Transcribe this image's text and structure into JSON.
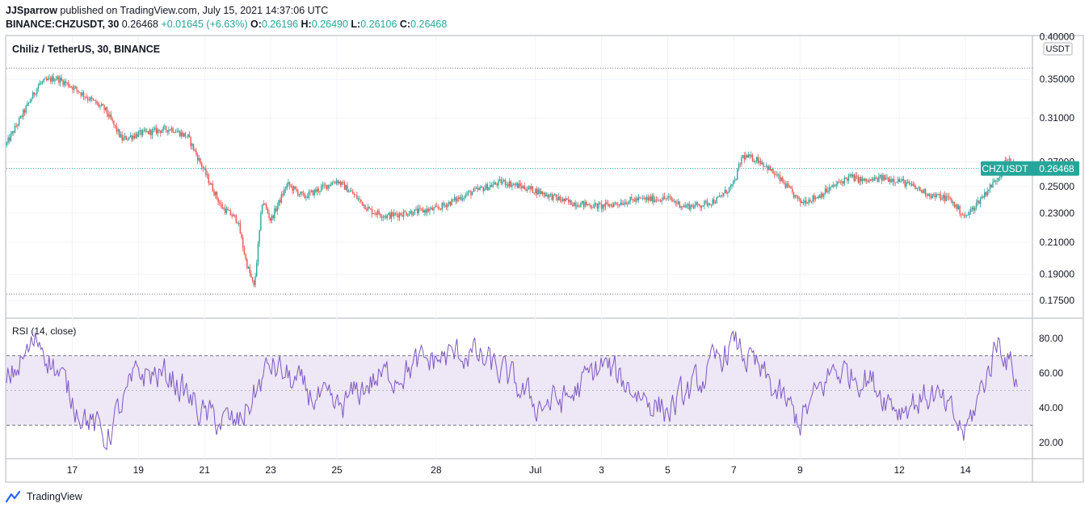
{
  "header": {
    "publisher": "JJSparrow",
    "published_text": "published on TradingView.com, July 15, 2021 14:37:06 UTC",
    "symbol": "BINANCE:CHZUSDT, 30",
    "last": "0.26468",
    "change": "+0.01645 (+6.63%)",
    "o_label": "O:",
    "o_value": "0.26196",
    "h_label": "H:",
    "h_value": "0.26490",
    "l_label": "L:",
    "l_value": "0.26106",
    "c_label": "C:",
    "c_value": "0.26468"
  },
  "colors": {
    "up": "#26a69a",
    "down": "#ef5350",
    "wick": "#4a4a4a",
    "rsi_line": "#7e57c2",
    "rsi_band": "#ede7f6",
    "grid": "#f0f3fa",
    "axis_line": "#787b86",
    "badge": "#26a69a"
  },
  "footer": {
    "brand": "TradingView",
    "brand_icon": "tradingview-logo-icon"
  },
  "chart_data": [
    {
      "type": "candlestick",
      "title": "Chiliz / TetherUS, 30, BINANCE",
      "axis_unit": "USDT",
      "y_scale": "log",
      "ylim": [
        0.17,
        0.41
      ],
      "y_ticks": [
        "0.40000",
        "0.35000",
        "0.31000",
        "0.27000",
        "0.25000",
        "0.23000",
        "0.21000",
        "0.19000",
        "0.17500"
      ],
      "x_ticks": [
        "17",
        "19",
        "21",
        "23",
        "25",
        "28",
        "Jul",
        "3",
        "5",
        "7",
        "9",
        "12",
        "14"
      ],
      "high_line": 0.3625,
      "low_line": 0.1785,
      "last_price_label": "CHZUSDT",
      "last_price": "0.26468",
      "approx_close_path": [
        {
          "date": "2021-06-15",
          "close": 0.285
        },
        {
          "date": "2021-06-16",
          "close": 0.345
        },
        {
          "date": "2021-06-16 12:00",
          "close": 0.352
        },
        {
          "date": "2021-06-17",
          "close": 0.342
        },
        {
          "date": "2021-06-18",
          "close": 0.318
        },
        {
          "date": "2021-06-18 12:00",
          "close": 0.29
        },
        {
          "date": "2021-06-19",
          "close": 0.295
        },
        {
          "date": "2021-06-20",
          "close": 0.3
        },
        {
          "date": "2021-06-20 12:00",
          "close": 0.292
        },
        {
          "date": "2021-06-21",
          "close": 0.262
        },
        {
          "date": "2021-06-21 12:00",
          "close": 0.235
        },
        {
          "date": "2021-06-22",
          "close": 0.225
        },
        {
          "date": "2021-06-22 06:00",
          "close": 0.198
        },
        {
          "date": "2021-06-22 12:00",
          "close": 0.182
        },
        {
          "date": "2021-06-22 18:00",
          "close": 0.24
        },
        {
          "date": "2021-06-23",
          "close": 0.225
        },
        {
          "date": "2021-06-23 12:00",
          "close": 0.252
        },
        {
          "date": "2021-06-24",
          "close": 0.242
        },
        {
          "date": "2021-06-25",
          "close": 0.255
        },
        {
          "date": "2021-06-25 12:00",
          "close": 0.244
        },
        {
          "date": "2021-06-26",
          "close": 0.232
        },
        {
          "date": "2021-06-26 12:00",
          "close": 0.228
        },
        {
          "date": "2021-06-27",
          "close": 0.23
        },
        {
          "date": "2021-06-28",
          "close": 0.233
        },
        {
          "date": "2021-06-29",
          "close": 0.245
        },
        {
          "date": "2021-06-30",
          "close": 0.254
        },
        {
          "date": "2021-07-01",
          "close": 0.247
        },
        {
          "date": "2021-07-02",
          "close": 0.238
        },
        {
          "date": "2021-07-03",
          "close": 0.235
        },
        {
          "date": "2021-07-04",
          "close": 0.24
        },
        {
          "date": "2021-07-05",
          "close": 0.241
        },
        {
          "date": "2021-07-05 12:00",
          "close": 0.235
        },
        {
          "date": "2021-07-06",
          "close": 0.236
        },
        {
          "date": "2021-07-06 12:00",
          "close": 0.24
        },
        {
          "date": "2021-07-07",
          "close": 0.252
        },
        {
          "date": "2021-07-07 06:00",
          "close": 0.275
        },
        {
          "date": "2021-07-07 18:00",
          "close": 0.272
        },
        {
          "date": "2021-07-08",
          "close": 0.266
        },
        {
          "date": "2021-07-08 12:00",
          "close": 0.253
        },
        {
          "date": "2021-07-09",
          "close": 0.238
        },
        {
          "date": "2021-07-09 12:00",
          "close": 0.242
        },
        {
          "date": "2021-07-10",
          "close": 0.25
        },
        {
          "date": "2021-07-10 12:00",
          "close": 0.258
        },
        {
          "date": "2021-07-11",
          "close": 0.254
        },
        {
          "date": "2021-07-11 12:00",
          "close": 0.257
        },
        {
          "date": "2021-07-12",
          "close": 0.255
        },
        {
          "date": "2021-07-12 12:00",
          "close": 0.249
        },
        {
          "date": "2021-07-13",
          "close": 0.243
        },
        {
          "date": "2021-07-13 12:00",
          "close": 0.241
        },
        {
          "date": "2021-07-14",
          "close": 0.227
        },
        {
          "date": "2021-07-14 12:00",
          "close": 0.242
        },
        {
          "date": "2021-07-15",
          "close": 0.258
        },
        {
          "date": "2021-07-15 06:00",
          "close": 0.272
        },
        {
          "date": "2021-07-15 14:30",
          "close": 0.2647
        }
      ]
    },
    {
      "type": "line",
      "title": "RSI (14, close)",
      "ylim": [
        13,
        88
      ],
      "y_ticks": [
        "80.00",
        "60.00",
        "40.00",
        "20.00"
      ],
      "band": [
        30,
        70
      ],
      "midline": 50,
      "approx_values": [
        {
          "date": "2021-06-15",
          "rsi": 55
        },
        {
          "date": "2021-06-16",
          "rsi": 80
        },
        {
          "date": "2021-06-17",
          "rsi": 45
        },
        {
          "date": "2021-06-18",
          "rsi": 22
        },
        {
          "date": "2021-06-19",
          "rsi": 60
        },
        {
          "date": "2021-06-20",
          "rsi": 58
        },
        {
          "date": "2021-06-21",
          "rsi": 35
        },
        {
          "date": "2021-06-22",
          "rsi": 30
        },
        {
          "date": "2021-06-23",
          "rsi": 65
        },
        {
          "date": "2021-06-24",
          "rsi": 50
        },
        {
          "date": "2021-06-25",
          "rsi": 38
        },
        {
          "date": "2021-06-26",
          "rsi": 55
        },
        {
          "date": "2021-06-28",
          "rsi": 68
        },
        {
          "date": "2021-06-29",
          "rsi": 72
        },
        {
          "date": "2021-06-30",
          "rsi": 60
        },
        {
          "date": "2021-07-01",
          "rsi": 42
        },
        {
          "date": "2021-07-02",
          "rsi": 45
        },
        {
          "date": "2021-07-03",
          "rsi": 65
        },
        {
          "date": "2021-07-04",
          "rsi": 50
        },
        {
          "date": "2021-07-05",
          "rsi": 38
        },
        {
          "date": "2021-07-06",
          "rsi": 55
        },
        {
          "date": "2021-07-07",
          "rsi": 78
        },
        {
          "date": "2021-07-08",
          "rsi": 55
        },
        {
          "date": "2021-07-09",
          "rsi": 32
        },
        {
          "date": "2021-07-10",
          "rsi": 62
        },
        {
          "date": "2021-07-11",
          "rsi": 58
        },
        {
          "date": "2021-07-12",
          "rsi": 40
        },
        {
          "date": "2021-07-13",
          "rsi": 48
        },
        {
          "date": "2021-07-14",
          "rsi": 25
        },
        {
          "date": "2021-07-14 18:00",
          "rsi": 65
        },
        {
          "date": "2021-07-15",
          "rsi": 80
        },
        {
          "date": "2021-07-15 14:30",
          "rsi": 55
        }
      ]
    }
  ]
}
